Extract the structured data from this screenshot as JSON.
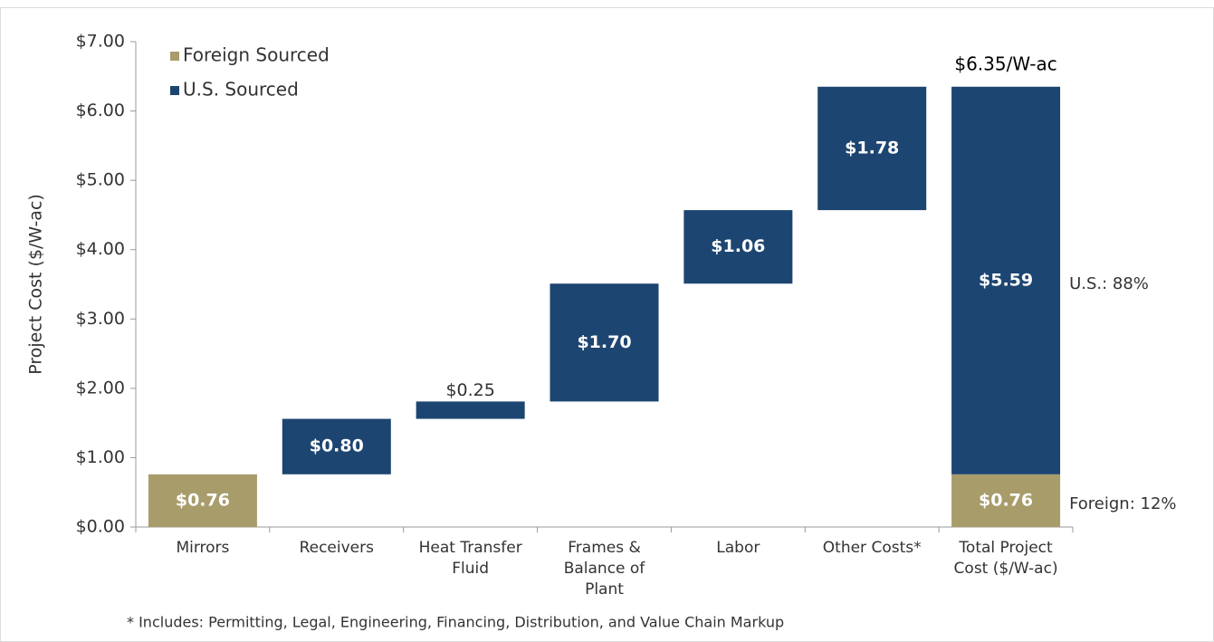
{
  "chart_data": {
    "type": "waterfall",
    "y_label": "Project Cost ($/W-ac)",
    "categories": [
      "Mirrors",
      "Receivers",
      "Heat Transfer\nFluid",
      "Frames &\nBalance of\nPlant",
      "Labor",
      "Other Costs*",
      "Total Project\nCost ($/W-ac)"
    ],
    "series": [
      {
        "name": "Foreign Sourced",
        "color": "#a89c6b",
        "values": [
          0.76,
          null,
          null,
          null,
          null,
          null,
          0.76
        ],
        "value_labels": [
          "$0.76",
          null,
          null,
          null,
          null,
          null,
          "$0.76"
        ],
        "share_label": "Foreign: 12%"
      },
      {
        "name": "U.S. Sourced",
        "color": "#1d4571",
        "values": [
          null,
          0.8,
          0.25,
          1.7,
          1.06,
          1.78,
          5.59
        ],
        "value_labels": [
          null,
          "$0.80",
          "$0.25",
          "$1.70",
          "$1.06",
          "$1.78",
          "$5.59"
        ],
        "share_label": "U.S.: 88%"
      }
    ],
    "total_label": "$6.35/W-ac",
    "ylim": [
      0,
      7
    ],
    "yticks": [
      {
        "value": 0,
        "label": "$0.00"
      },
      {
        "value": 1,
        "label": "$1.00"
      },
      {
        "value": 2,
        "label": "$2.00"
      },
      {
        "value": 3,
        "label": "$3.00"
      },
      {
        "value": 4,
        "label": "$4.00"
      },
      {
        "value": 5,
        "label": "$5.00"
      },
      {
        "value": 6,
        "label": "$6.00"
      },
      {
        "value": 7,
        "label": "$7.00"
      }
    ],
    "legend": "upper left",
    "note": "* Includes: Permitting, Legal, Engineering, Financing, Distribution, and Value Chain Markup"
  }
}
